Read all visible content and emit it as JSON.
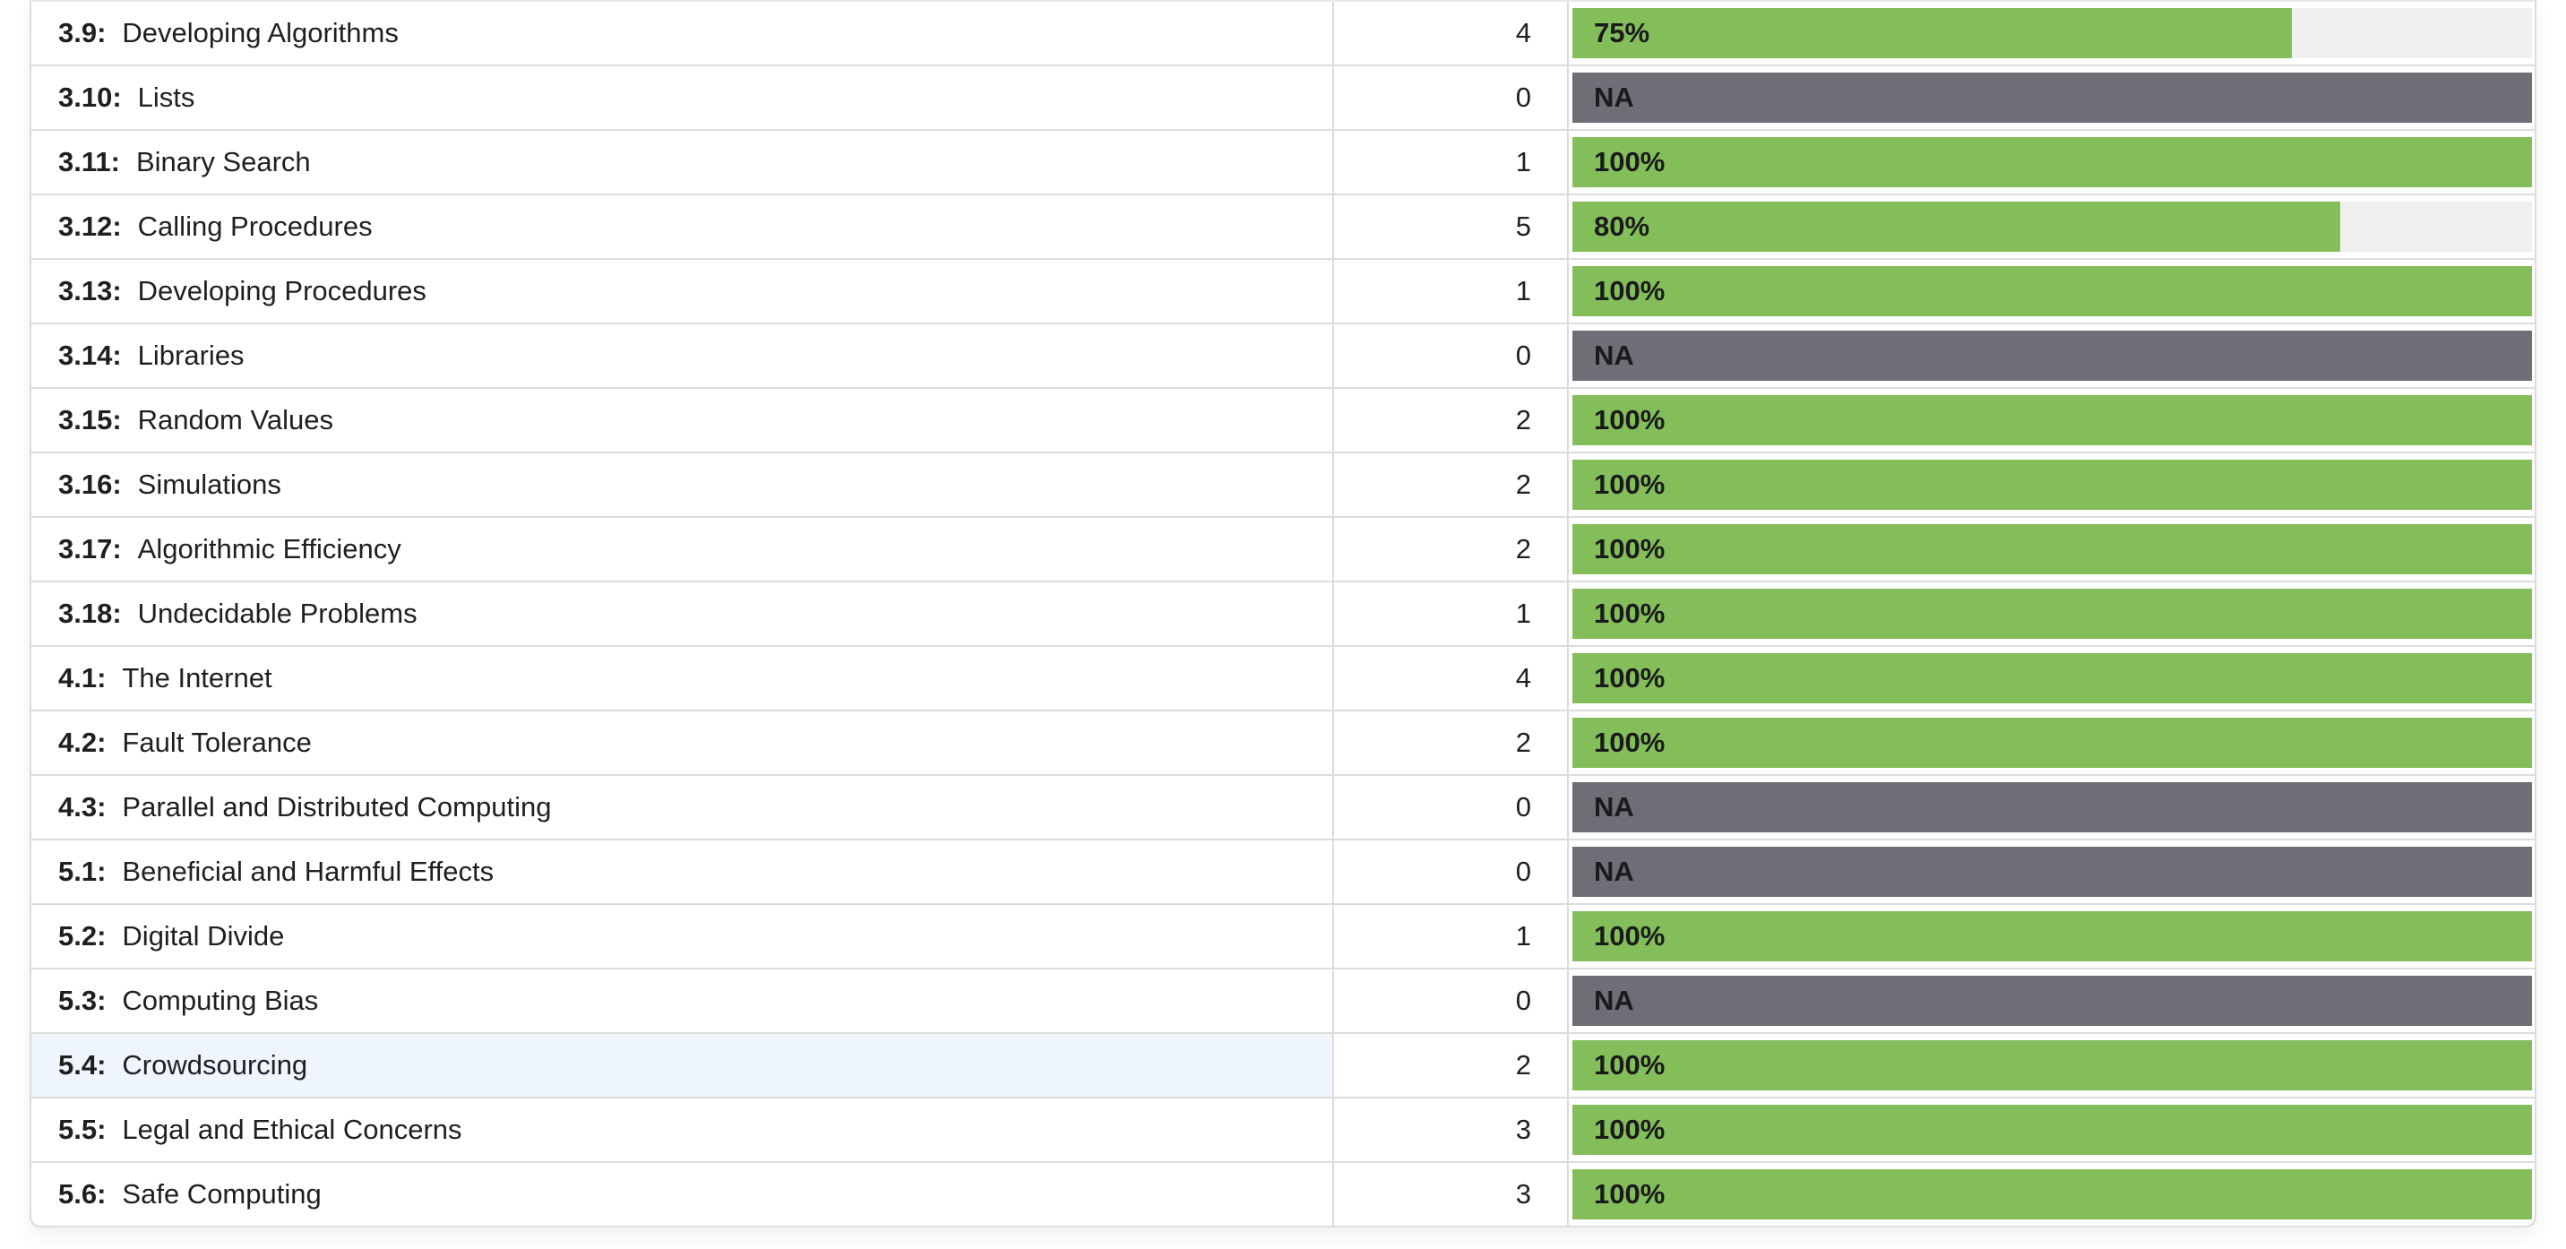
{
  "colors": {
    "progress_fill": "#84be5b",
    "progress_track": "#efefef",
    "na_bar": "#6f6e76",
    "highlight_row": "#eef5fc"
  },
  "rows": [
    {
      "code": "3.9:",
      "name": "Developing Algorithms",
      "count": "4",
      "score_label": "75%",
      "score_fraction": 0.75
    },
    {
      "code": "3.10:",
      "name": "Lists",
      "count": "0",
      "score_label": "NA",
      "score_fraction": null
    },
    {
      "code": "3.11:",
      "name": "Binary Search",
      "count": "1",
      "score_label": "100%",
      "score_fraction": 1.0
    },
    {
      "code": "3.12:",
      "name": "Calling Procedures",
      "count": "5",
      "score_label": "80%",
      "score_fraction": 0.8
    },
    {
      "code": "3.13:",
      "name": "Developing Procedures",
      "count": "1",
      "score_label": "100%",
      "score_fraction": 1.0
    },
    {
      "code": "3.14:",
      "name": "Libraries",
      "count": "0",
      "score_label": "NA",
      "score_fraction": null
    },
    {
      "code": "3.15:",
      "name": "Random Values",
      "count": "2",
      "score_label": "100%",
      "score_fraction": 1.0
    },
    {
      "code": "3.16:",
      "name": "Simulations",
      "count": "2",
      "score_label": "100%",
      "score_fraction": 1.0
    },
    {
      "code": "3.17:",
      "name": "Algorithmic Efficiency",
      "count": "2",
      "score_label": "100%",
      "score_fraction": 1.0
    },
    {
      "code": "3.18:",
      "name": "Undecidable Problems",
      "count": "1",
      "score_label": "100%",
      "score_fraction": 1.0
    },
    {
      "code": "4.1:",
      "name": "The Internet",
      "count": "4",
      "score_label": "100%",
      "score_fraction": 1.0
    },
    {
      "code": "4.2:",
      "name": "Fault Tolerance",
      "count": "2",
      "score_label": "100%",
      "score_fraction": 1.0
    },
    {
      "code": "4.3:",
      "name": "Parallel and Distributed Computing",
      "count": "0",
      "score_label": "NA",
      "score_fraction": null
    },
    {
      "code": "5.1:",
      "name": "Beneficial and Harmful Effects",
      "count": "0",
      "score_label": "NA",
      "score_fraction": null
    },
    {
      "code": "5.2:",
      "name": "Digital Divide",
      "count": "1",
      "score_label": "100%",
      "score_fraction": 1.0
    },
    {
      "code": "5.3:",
      "name": "Computing Bias",
      "count": "0",
      "score_label": "NA",
      "score_fraction": null
    },
    {
      "code": "5.4:",
      "name": "Crowdsourcing",
      "count": "2",
      "score_label": "100%",
      "score_fraction": 1.0,
      "highlighted": true
    },
    {
      "code": "5.5:",
      "name": "Legal and Ethical Concerns",
      "count": "3",
      "score_label": "100%",
      "score_fraction": 1.0
    },
    {
      "code": "5.6:",
      "name": "Safe Computing",
      "count": "3",
      "score_label": "100%",
      "score_fraction": 1.0
    }
  ]
}
